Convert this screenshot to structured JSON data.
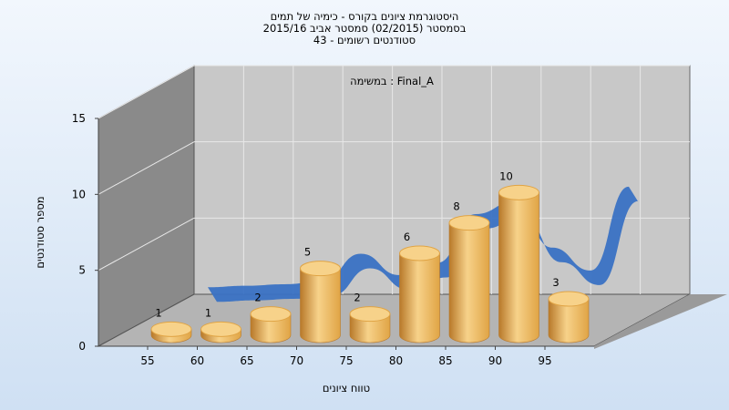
{
  "chart_data": {
    "type": "bar",
    "title_lines": [
      "היסטוגרמת ציונים בקורס - כימיה של תמים",
      "בסמסטר (02/2015) סמסטר אביב 2015/16",
      "סטודנטים רשומים - 43"
    ],
    "subtitle": "במשימה : Final_A",
    "xlabel": "טווח ציונים",
    "ylabel": "מספר סטודנטים",
    "x_ticks": [
      "55",
      "60",
      "65",
      "70",
      "75",
      "80",
      "85",
      "90",
      "95"
    ],
    "y_ticks": [
      "0",
      "5",
      "10",
      "15"
    ],
    "ylim": [
      0,
      15
    ],
    "categories": [
      "55",
      "60",
      "65",
      "70",
      "75",
      "80",
      "85",
      "90",
      "95"
    ],
    "values": [
      1,
      1,
      2,
      5,
      2,
      6,
      8,
      10,
      3
    ],
    "data_labels": [
      "1",
      "1",
      "2",
      "5",
      "2",
      "6",
      "8",
      "10",
      "3"
    ],
    "trend_series": {
      "type": "line-ribbon",
      "values": [
        0.4,
        0.5,
        0.6,
        0.8,
        2.6,
        1.2,
        2.0,
        5.2,
        6.0,
        3.0,
        1.5,
        7.0
      ]
    },
    "grid": true,
    "colors": {
      "bar_light": "#f7d28a",
      "bar_mid": "#e0a445",
      "bar_dark": "#b8792a",
      "ribbon": "#3a72c4",
      "back_wall": "#c8c8c8",
      "side_wall": "#8a8a8a",
      "floor": "#b4b4b4",
      "background_top": "#f2f7fd",
      "background_bottom": "#cfe0f3"
    }
  }
}
